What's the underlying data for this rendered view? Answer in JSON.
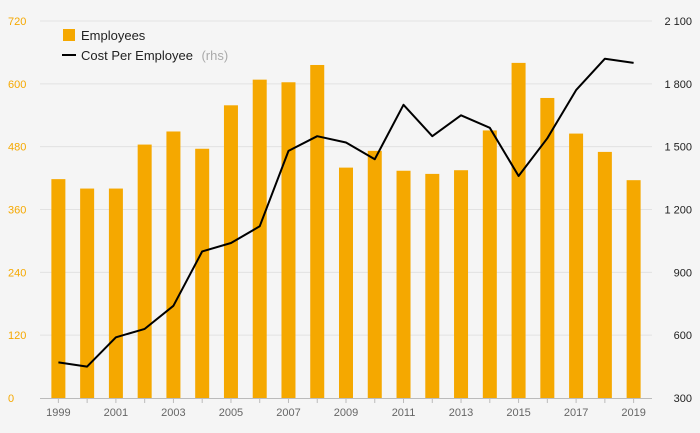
{
  "chart_data": {
    "type": "bar+line",
    "x": [
      1999,
      2000,
      2001,
      2002,
      2003,
      2004,
      2005,
      2006,
      2007,
      2008,
      2009,
      2010,
      2011,
      2012,
      2013,
      2014,
      2015,
      2016,
      2017,
      2018,
      2019
    ],
    "x_tick_labels": [
      "1999",
      "2001",
      "2003",
      "2005",
      "2007",
      "2009",
      "2011",
      "2013",
      "2015",
      "2017",
      "2019"
    ],
    "series": [
      {
        "name": "Employees",
        "type": "bar",
        "axis": "left",
        "color": "#f5a800",
        "values": [
          418,
          400,
          400,
          484,
          509,
          476,
          559,
          608,
          603,
          636,
          440,
          472,
          434,
          428,
          435,
          511,
          640,
          573,
          505,
          470,
          416
        ]
      },
      {
        "name": "Cost Per Employee",
        "name_suffix": "(rhs)",
        "type": "line",
        "axis": "right",
        "color": "#000000",
        "values": [
          470,
          450,
          590,
          630,
          740,
          1000,
          1040,
          1120,
          1480,
          1550,
          1520,
          1440,
          1700,
          1550,
          1650,
          1590,
          1360,
          1540,
          1770,
          1920,
          1900
        ]
      }
    ],
    "y_left": {
      "lim": [
        0,
        720
      ],
      "ticks": [
        0,
        120,
        240,
        360,
        480,
        600,
        720
      ],
      "tick_labels": [
        "0",
        "120",
        "240",
        "360",
        "480",
        "600",
        "720"
      ]
    },
    "y_right": {
      "lim": [
        300,
        2100
      ],
      "ticks": [
        300,
        600,
        900,
        1200,
        1500,
        1800,
        2100
      ],
      "tick_labels": [
        "300",
        "600",
        "900",
        "1 200",
        "1 500",
        "1 800",
        "2 100"
      ]
    },
    "grid": true,
    "legend": "top-left"
  }
}
